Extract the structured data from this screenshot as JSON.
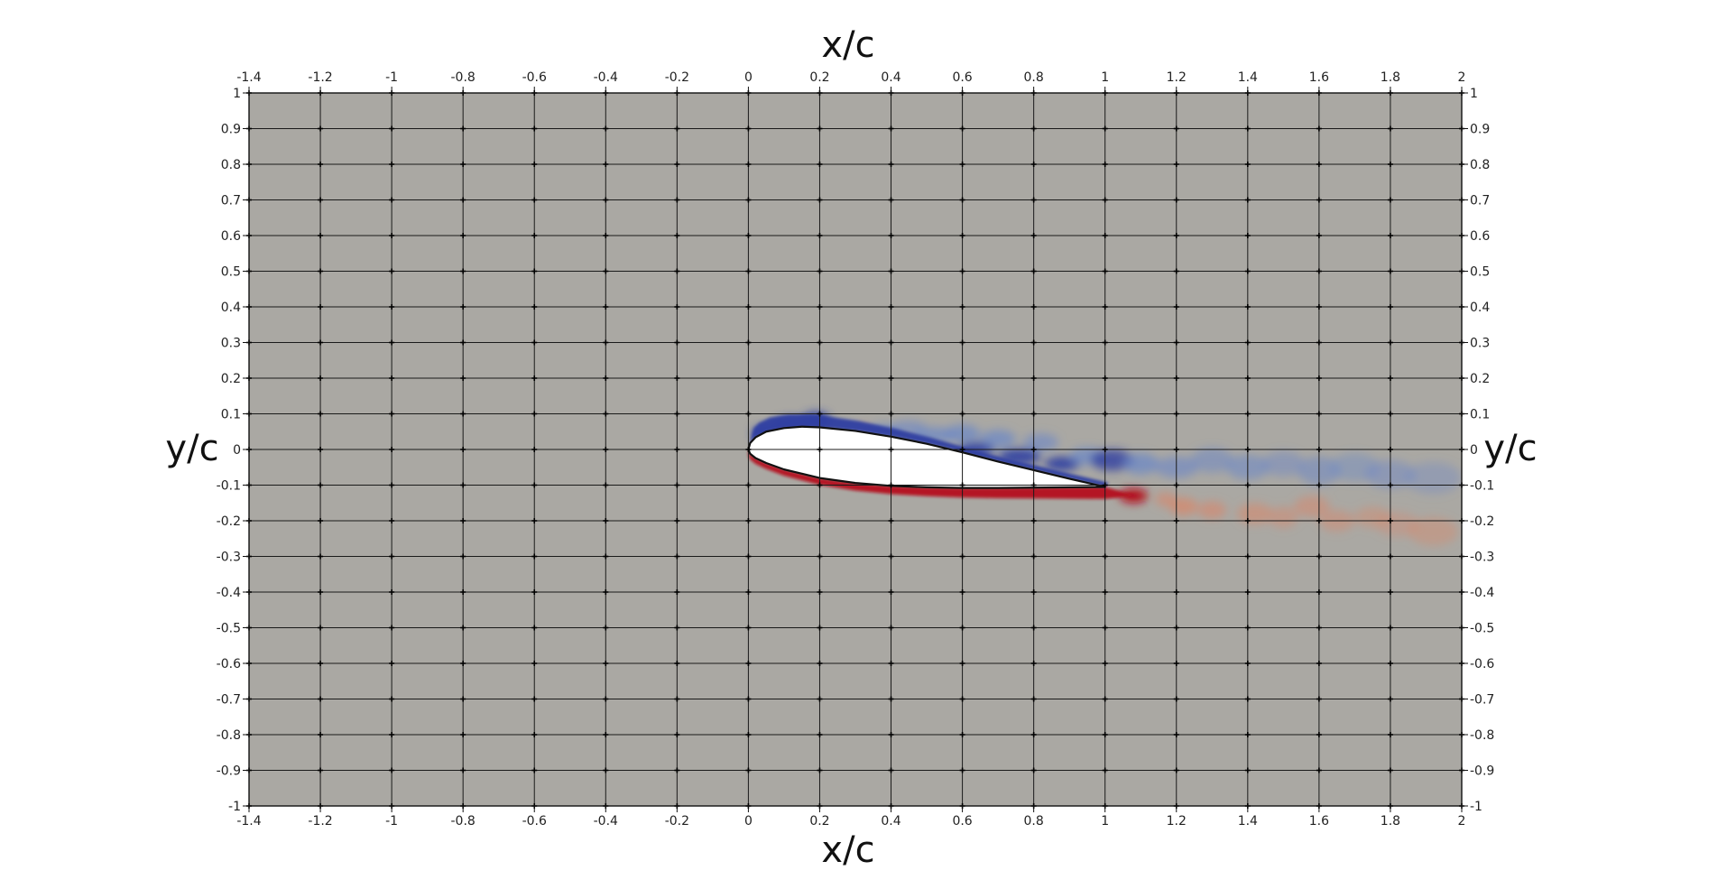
{
  "chart_data": {
    "type": "heatmap",
    "xlabel_top": "x/c",
    "xlabel_bottom": "x/c",
    "ylabel_left": "y/c",
    "ylabel_right": "y/c",
    "xlim": [
      -1.4,
      2
    ],
    "ylim": [
      -1,
      1
    ],
    "grid": true,
    "x_ticks": [
      -1.4,
      -1.2,
      -1,
      -0.8,
      -0.6,
      -0.4,
      -0.2,
      0,
      0.2,
      0.4,
      0.6,
      0.8,
      1,
      1.2,
      1.4,
      1.6,
      1.8,
      2
    ],
    "y_ticks": [
      1,
      0.9,
      0.8,
      0.7,
      0.6,
      0.5,
      0.4,
      0.3,
      0.2,
      0.1,
      0,
      -0.1,
      -0.2,
      -0.3,
      -0.4,
      -0.5,
      -0.6,
      -0.7,
      -0.8,
      -0.9,
      -1
    ],
    "x_tick_labels": [
      "-1.4",
      "-1.2",
      "-1",
      "-0.8",
      "-0.6",
      "-0.4",
      "-0.2",
      "0",
      "0.2",
      "0.4",
      "0.6",
      "0.8",
      "1",
      "1.2",
      "1.4",
      "1.6",
      "1.8",
      "2"
    ],
    "y_tick_labels": [
      "1",
      "0.9",
      "0.8",
      "0.7",
      "0.6",
      "0.5",
      "0.4",
      "0.3",
      "0.2",
      "0.1",
      "0",
      "-0.1",
      "-0.2",
      "-0.3",
      "-0.4",
      "-0.5",
      "-0.6",
      "-0.7",
      "-0.8",
      "-0.9",
      "-1"
    ],
    "colors": {
      "background_field": "#aaa8a3",
      "positive": "#b40d1a",
      "negative": "#2e3fa1",
      "positive_light": "#d98669",
      "negative_light": "#6a86c8",
      "airfoil_fill": "#ffffff",
      "grid": "#1a1a1a"
    },
    "airfoil_upper": [
      [
        0,
        0
      ],
      [
        0.005,
        0.018
      ],
      [
        0.02,
        0.034
      ],
      [
        0.05,
        0.05
      ],
      [
        0.1,
        0.06
      ],
      [
        0.15,
        0.064
      ],
      [
        0.2,
        0.062
      ],
      [
        0.3,
        0.052
      ],
      [
        0.4,
        0.036
      ],
      [
        0.5,
        0.016
      ],
      [
        0.6,
        -0.008
      ],
      [
        0.7,
        -0.034
      ],
      [
        0.8,
        -0.058
      ],
      [
        0.9,
        -0.082
      ],
      [
        1.0,
        -0.105
      ]
    ],
    "airfoil_lower": [
      [
        0,
        0
      ],
      [
        0.005,
        -0.012
      ],
      [
        0.02,
        -0.024
      ],
      [
        0.05,
        -0.038
      ],
      [
        0.1,
        -0.056
      ],
      [
        0.2,
        -0.08
      ],
      [
        0.3,
        -0.094
      ],
      [
        0.4,
        -0.102
      ],
      [
        0.5,
        -0.106
      ],
      [
        0.6,
        -0.108
      ],
      [
        0.7,
        -0.108
      ],
      [
        0.8,
        -0.107
      ],
      [
        0.9,
        -0.106
      ],
      [
        1.0,
        -0.105
      ]
    ],
    "negative_vorticity_blobs": [
      [
        0.05,
        0.045,
        0.04,
        0.02,
        1.0
      ],
      [
        0.12,
        0.07,
        0.05,
        0.02,
        1.0
      ],
      [
        0.19,
        0.08,
        0.04,
        0.025,
        1.0
      ],
      [
        0.3,
        0.05,
        0.05,
        0.02,
        0.6
      ],
      [
        0.38,
        0.05,
        0.05,
        0.02,
        0.7
      ],
      [
        0.45,
        0.06,
        0.05,
        0.02,
        0.6
      ],
      [
        0.52,
        0.04,
        0.06,
        0.022,
        0.7
      ],
      [
        0.6,
        0.045,
        0.05,
        0.025,
        0.7
      ],
      [
        0.64,
        0.0,
        0.05,
        0.02,
        0.9
      ],
      [
        0.7,
        0.03,
        0.05,
        0.025,
        0.7
      ],
      [
        0.76,
        -0.02,
        0.06,
        0.022,
        0.9
      ],
      [
        0.82,
        0.02,
        0.05,
        0.025,
        0.6
      ],
      [
        0.88,
        -0.04,
        0.05,
        0.02,
        0.9
      ],
      [
        0.95,
        -0.02,
        0.05,
        0.025,
        0.7
      ],
      [
        1.02,
        -0.03,
        0.06,
        0.03,
        0.8
      ],
      [
        1.1,
        -0.04,
        0.05,
        0.03,
        0.7
      ],
      [
        1.2,
        -0.05,
        0.06,
        0.03,
        0.6
      ],
      [
        1.3,
        -0.03,
        0.06,
        0.035,
        0.5
      ],
      [
        1.4,
        -0.05,
        0.06,
        0.035,
        0.55
      ],
      [
        1.5,
        -0.04,
        0.06,
        0.035,
        0.45
      ],
      [
        1.6,
        -0.06,
        0.06,
        0.04,
        0.5
      ],
      [
        1.7,
        -0.05,
        0.07,
        0.04,
        0.4
      ],
      [
        1.8,
        -0.07,
        0.07,
        0.04,
        0.45
      ],
      [
        1.92,
        -0.08,
        0.08,
        0.045,
        0.35
      ]
    ],
    "positive_vorticity_blobs": [
      [
        0.1,
        0.035,
        0.03,
        0.01,
        0.6
      ],
      [
        0.32,
        0.06,
        0.02,
        0.01,
        0.5
      ],
      [
        1.08,
        -0.13,
        0.04,
        0.02,
        1.0
      ],
      [
        1.17,
        -0.14,
        0.03,
        0.02,
        0.6
      ],
      [
        1.22,
        -0.16,
        0.04,
        0.025,
        0.7
      ],
      [
        1.3,
        -0.17,
        0.04,
        0.025,
        0.6
      ],
      [
        1.42,
        -0.18,
        0.05,
        0.03,
        0.55
      ],
      [
        1.5,
        -0.19,
        0.04,
        0.03,
        0.45
      ],
      [
        1.58,
        -0.16,
        0.05,
        0.03,
        0.5
      ],
      [
        1.65,
        -0.2,
        0.05,
        0.03,
        0.45
      ],
      [
        1.75,
        -0.19,
        0.05,
        0.03,
        0.4
      ],
      [
        1.82,
        -0.21,
        0.06,
        0.035,
        0.35
      ],
      [
        1.92,
        -0.23,
        0.07,
        0.04,
        0.4
      ]
    ]
  }
}
